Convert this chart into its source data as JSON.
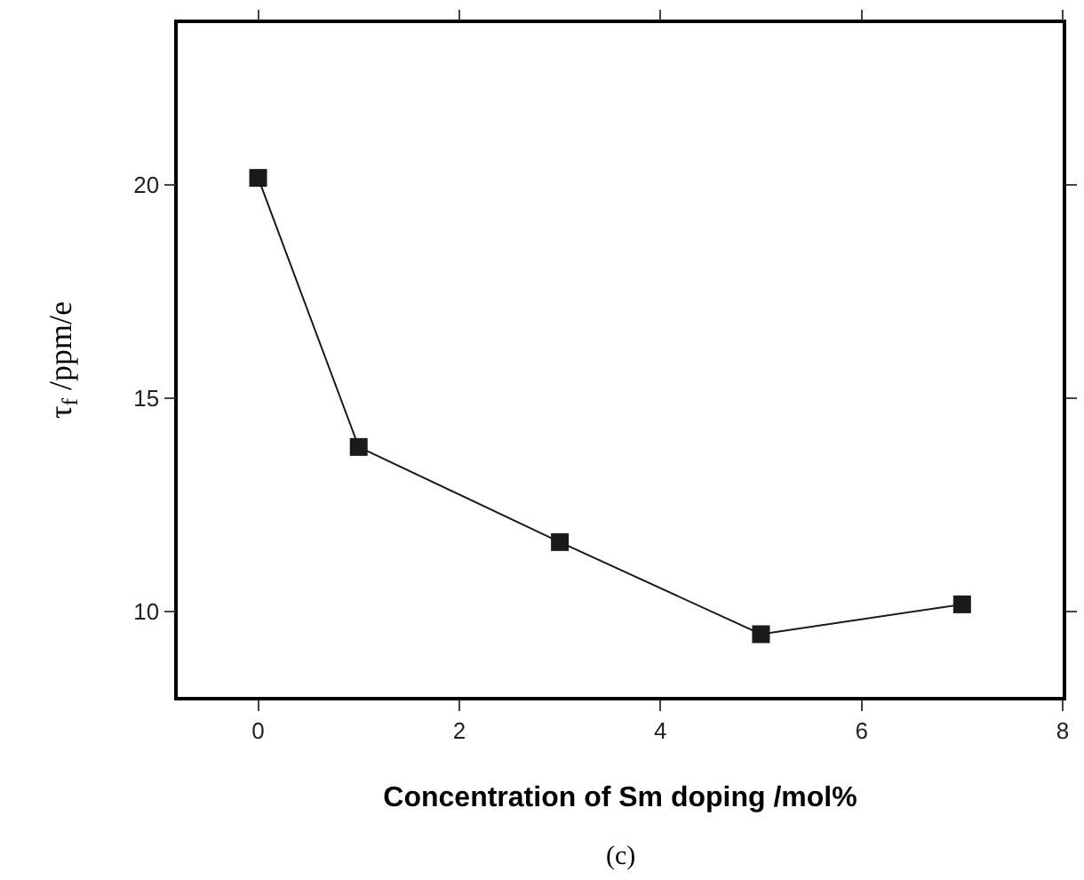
{
  "chart_data": {
    "type": "line",
    "xlabel": "Concentration of Sm doping /mol%",
    "ylabel": "τ$_{f}$ /ppm/e",
    "annotations": [
      "(c)"
    ],
    "x": [
      0,
      1,
      3,
      5,
      7
    ],
    "series": [
      {
        "color": "#1a1a1a",
        "values": [
          20.17,
          13.86,
          11.63,
          9.47,
          10.17
        ]
      }
    ],
    "xlim": [
      -0.8,
      8
    ],
    "xticks": [
      0,
      2,
      4,
      6,
      8
    ],
    "ylim": [
      8,
      23.8
    ],
    "yticks": [
      10,
      15,
      20
    ],
    "marker": "square",
    "line_style": "solid",
    "legend": false
  }
}
